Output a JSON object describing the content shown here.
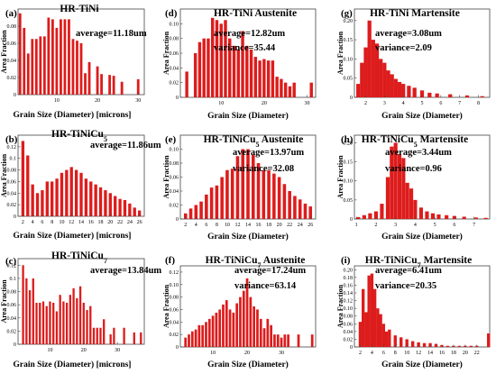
{
  "chart_data": [
    {
      "type": "bar",
      "panel_label": "(a)",
      "title": "HR-TiNi",
      "stats": [
        "average=11.18um"
      ],
      "xlabel": "Grain Size (Diameter) [microns]",
      "ylabel": "Area Fraction",
      "bar_color": "#dd1c1c",
      "ylim": [
        0,
        0.1
      ],
      "yticks": [
        0,
        0.02,
        0.04,
        0.06,
        0.08
      ],
      "ytick_labels": [
        "0",
        "0.02",
        "0.04",
        "0.06",
        "0.08"
      ],
      "xlim": [
        0.5,
        31.5
      ],
      "xticks": [
        10,
        20,
        30
      ],
      "xtick_labels": [
        "10",
        "20",
        "30"
      ],
      "x": [
        1,
        2,
        3,
        4,
        5,
        6,
        7,
        8,
        9,
        10,
        11,
        12,
        13,
        14,
        15,
        16,
        17,
        18,
        19,
        20,
        21,
        22,
        23,
        24,
        25,
        26,
        27,
        28,
        29,
        30
      ],
      "values": [
        0.095,
        0.078,
        0.048,
        0.065,
        0.065,
        0.068,
        0.068,
        0.09,
        0.088,
        0.078,
        0.088,
        0.088,
        0.088,
        0.065,
        0.063,
        0.06,
        0.025,
        0.038,
        0,
        0.033,
        0.024,
        0,
        0.023,
        0.022,
        0,
        0.015,
        0,
        0,
        0,
        0.018
      ]
    },
    {
      "type": "bar",
      "panel_label": "(b)",
      "title": "HR-TiNiCu5",
      "stats": [
        "average=11.86um"
      ],
      "xlabel": "Grain Size (Diameter) [microns]",
      "ylabel": "Area Fraction",
      "bar_color": "#dd1c1c",
      "ylim": [
        0,
        0.14
      ],
      "yticks": [
        0,
        0.02,
        0.04,
        0.06,
        0.08,
        0.1,
        0.12
      ],
      "ytick_labels": [
        "0",
        "0.02",
        "0.04",
        "0.06",
        "0.08",
        "0.1",
        "0.12"
      ],
      "xlim": [
        1,
        27
      ],
      "xticks": [
        2,
        4,
        6,
        8,
        10,
        12,
        14,
        16,
        18,
        20,
        22,
        24,
        26
      ],
      "xtick_labels": [
        "2",
        "4",
        "6",
        "8",
        "10",
        "12",
        "14",
        "16",
        "18",
        "20",
        "22",
        "24",
        "26"
      ],
      "x": [
        2,
        3,
        4,
        5,
        6,
        7,
        8,
        9,
        10,
        11,
        12,
        13,
        14,
        15,
        16,
        17,
        18,
        19,
        20,
        21,
        22,
        23,
        24,
        25,
        26
      ],
      "values": [
        0.13,
        0.105,
        0.055,
        0.04,
        0.045,
        0.06,
        0.06,
        0.065,
        0.075,
        0.08,
        0.085,
        0.08,
        0.075,
        0.065,
        0.06,
        0.055,
        0.05,
        0.045,
        0.04,
        0.035,
        0.03,
        0.028,
        0.022,
        0.015,
        0.01
      ]
    },
    {
      "type": "bar",
      "panel_label": "(c)",
      "title": "HR-TiNiCu7",
      "stats": [
        "average=13.84um"
      ],
      "xlabel": "Grain Size (Diameter) [microns]",
      "ylabel": "Area Fraction",
      "bar_color": "#dd1c1c",
      "ylim": [
        0,
        0.13
      ],
      "yticks": [
        0,
        0.02,
        0.04,
        0.06,
        0.08,
        0.1,
        0.12
      ],
      "ytick_labels": [
        "0",
        "0.02",
        "0.04",
        "0.06",
        "0.08",
        "0.1",
        "0.12"
      ],
      "xlim": [
        0.5,
        38
      ],
      "xticks": [
        10,
        20,
        30
      ],
      "xtick_labels": [
        "10",
        "20",
        "30"
      ],
      "x": [
        2,
        3,
        4,
        5,
        6,
        7,
        8,
        9,
        10,
        11,
        12,
        13,
        14,
        15,
        16,
        17,
        18,
        19,
        20,
        21,
        22,
        23,
        24,
        25,
        26,
        27,
        28,
        29,
        30,
        31,
        32,
        33,
        34,
        35,
        36,
        37
      ],
      "values": [
        0.12,
        0.1,
        0.082,
        0.1,
        0.063,
        0.063,
        0.065,
        0.058,
        0.065,
        0.063,
        0.05,
        0.075,
        0.065,
        0.063,
        0.075,
        0.085,
        0.07,
        0.088,
        0.063,
        0.052,
        0.058,
        0.025,
        0.025,
        0.025,
        0.038,
        0,
        0.015,
        0.025,
        0,
        0,
        0.025,
        0,
        0,
        0.018,
        0,
        0.018
      ]
    },
    {
      "type": "bar",
      "panel_label": "(d)",
      "title": "HR-TiNi Austenite",
      "stats": [
        "average=12.82um",
        "variance=35.44"
      ],
      "xlabel": "Grain Size (Diameter)",
      "ylabel": "Area Fraction",
      "bar_color": "#dd1c1c",
      "ylim": [
        0,
        0.12
      ],
      "yticks": [
        0,
        0.02,
        0.04,
        0.06,
        0.08,
        0.1
      ],
      "ytick_labels": [
        "0",
        "0.02",
        "0.04",
        "0.06",
        "0.08",
        "0.10"
      ],
      "xlim": [
        0.5,
        32
      ],
      "xticks": [
        10,
        20,
        30
      ],
      "xtick_labels": [
        "10",
        "20",
        "30"
      ],
      "x": [
        2,
        4,
        5,
        6,
        7,
        8,
        9,
        10,
        11,
        12,
        13,
        14,
        15,
        16,
        17,
        18,
        19,
        20,
        21,
        22,
        23,
        24,
        25,
        26,
        27,
        31
      ],
      "values": [
        0.035,
        0.06,
        0.075,
        0.08,
        0.08,
        0.108,
        0.105,
        0.1,
        0.105,
        0.08,
        0.07,
        0.065,
        0.09,
        0.07,
        0.065,
        0.055,
        0.05,
        0.052,
        0.05,
        0.05,
        0.028,
        0.025,
        0.02,
        0.015,
        0.02,
        0.02
      ]
    },
    {
      "type": "bar",
      "panel_label": "(e)",
      "title": "HR-TiNiCu5 Austenite",
      "stats": [
        "average=13.97um",
        "variance=32.08"
      ],
      "xlabel": "Grain Size (Diameter)",
      "ylabel": "Area Fraction",
      "bar_color": "#dd1c1c",
      "ylim": [
        0,
        0.12
      ],
      "yticks": [
        0,
        0.02,
        0.04,
        0.06,
        0.08,
        0.1
      ],
      "ytick_labels": [
        "0",
        "0.02",
        "0.04",
        "0.06",
        "0.08",
        "0.10"
      ],
      "xlim": [
        1,
        27
      ],
      "xticks": [
        2,
        4,
        6,
        8,
        10,
        12,
        14,
        16,
        18,
        20,
        22,
        24,
        26
      ],
      "xtick_labels": [
        "2",
        "4",
        "6",
        "8",
        "10",
        "12",
        "14",
        "16",
        "18",
        "20",
        "22",
        "24",
        "26"
      ],
      "x": [
        2,
        3,
        4,
        5,
        6,
        7,
        8,
        9,
        10,
        11,
        12,
        13,
        14,
        15,
        16,
        17,
        18,
        19,
        20,
        21,
        22,
        23,
        24,
        25,
        26
      ],
      "values": [
        0.008,
        0.015,
        0.02,
        0.025,
        0.035,
        0.045,
        0.048,
        0.06,
        0.07,
        0.072,
        0.09,
        0.1,
        0.1,
        0.092,
        0.08,
        0.07,
        0.07,
        0.065,
        0.06,
        0.05,
        0.04,
        0.033,
        0.028,
        0.022,
        0.018
      ]
    },
    {
      "type": "bar",
      "panel_label": "(f)",
      "title": "HR-TiNiCu7 Austenite",
      "stats": [
        "average=17.24um",
        "variance=63.14"
      ],
      "xlabel": "Grain Size (Diameter)",
      "ylabel": "Area Fraction",
      "bar_color": "#dd1c1c",
      "ylim": [
        0,
        0.13
      ],
      "yticks": [
        0,
        0.02,
        0.04,
        0.06,
        0.08,
        0.1,
        0.12
      ],
      "ytick_labels": [
        "0",
        "0.02",
        "0.04",
        "0.06",
        "0.08",
        "0.10",
        "0.12"
      ],
      "xlim": [
        0.5,
        40
      ],
      "xticks": [
        10,
        20,
        30
      ],
      "xtick_labels": [
        "10",
        "20",
        "30"
      ],
      "x": [
        2,
        3,
        4,
        5,
        6,
        7,
        8,
        9,
        10,
        11,
        12,
        13,
        14,
        15,
        16,
        17,
        18,
        19,
        20,
        21,
        22,
        23,
        24,
        25,
        26,
        27,
        28,
        29,
        30,
        31,
        32,
        35,
        39
      ],
      "values": [
        0.015,
        0.02,
        0.025,
        0.028,
        0.035,
        0.035,
        0.04,
        0.045,
        0.05,
        0.055,
        0.06,
        0.068,
        0.075,
        0.06,
        0.055,
        0.07,
        0.08,
        0.09,
        0.11,
        0.08,
        0.065,
        0.06,
        0.045,
        0.03,
        0.045,
        0.035,
        0.02,
        0.02,
        0.015,
        0.02,
        0.02,
        0.02,
        0.02
      ]
    },
    {
      "type": "bar",
      "panel_label": "(g)",
      "title": "HR-TiNi Martensite",
      "stats": [
        "average=3.08um",
        "variance=2.09"
      ],
      "xlabel": "Grain Size (Diameter)",
      "ylabel": "Area Fraction",
      "bar_color": "#dd1c1c",
      "ylim": [
        0,
        0.23
      ],
      "yticks": [
        0,
        0.05,
        0.1,
        0.15,
        0.2
      ],
      "ytick_labels": [
        "0",
        "0.05",
        "0.10",
        "0.15",
        "0.20"
      ],
      "xlim": [
        1.4,
        8.6
      ],
      "xticks": [
        2,
        3,
        4,
        5,
        6,
        7,
        8
      ],
      "xtick_labels": [
        "2",
        "3",
        "4",
        "5",
        "6",
        "7",
        "8"
      ],
      "x": [
        1.6,
        1.8,
        2,
        2.2,
        2.4,
        2.6,
        2.8,
        3,
        3.2,
        3.4,
        3.6,
        3.8,
        4,
        4.3,
        4.6,
        5,
        5.4,
        5.8,
        6.5,
        7.4,
        8.2
      ],
      "values": [
        0.035,
        0.09,
        0.13,
        0.2,
        0.15,
        0.14,
        0.1,
        0.09,
        0.07,
        0.06,
        0.048,
        0.04,
        0.035,
        0.03,
        0.025,
        0.018,
        0.012,
        0.01,
        0.008,
        0.005,
        0.003
      ]
    },
    {
      "type": "bar",
      "panel_label": "(h)",
      "title": "HR-TiNiCu5 Martensite",
      "stats": [
        "average=3.44um",
        "variance=0.96"
      ],
      "xlabel": "Grain Size (Diameter)",
      "ylabel": "Area Fraction",
      "bar_color": "#dd1c1c",
      "ylim": [
        0,
        0.22
      ],
      "yticks": [
        0,
        0.05,
        0.1,
        0.15,
        0.2
      ],
      "ytick_labels": [
        "0",
        "0.05",
        "0.10",
        "0.15",
        "0.20"
      ],
      "xlim": [
        0.9,
        7.8
      ],
      "xticks": [
        1,
        2,
        3,
        4,
        5,
        6,
        7
      ],
      "xtick_labels": [
        "1",
        "2",
        "3",
        "4",
        "5",
        "6",
        "7"
      ],
      "x": [
        1.1,
        1.4,
        1.7,
        2,
        2.3,
        2.6,
        2.8,
        3,
        3.2,
        3.4,
        3.6,
        3.8,
        4,
        4.3,
        4.6,
        4.9,
        5.2,
        5.6,
        6,
        6.5,
        7.1,
        7.6
      ],
      "values": [
        0.005,
        0.01,
        0.015,
        0.02,
        0.04,
        0.11,
        0.19,
        0.2,
        0.17,
        0.16,
        0.095,
        0.08,
        0.05,
        0.03,
        0.02,
        0.015,
        0.012,
        0.01,
        0.008,
        0.006,
        0.004,
        0.003
      ]
    },
    {
      "type": "bar",
      "panel_label": "(i)",
      "title": "HR-TiNiCu7 Martensite",
      "stats": [
        "average=6.41um",
        "variance=20.35"
      ],
      "xlabel": "Grain Size (Diameter)",
      "ylabel": "Area Fraction",
      "bar_color": "#dd1c1c",
      "ylim": [
        0,
        0.21
      ],
      "yticks": [
        0,
        0.02,
        0.04,
        0.06,
        0.08,
        0.1,
        0.12,
        0.14,
        0.16,
        0.18,
        0.2
      ],
      "ytick_labels": [
        "0",
        "0.02",
        "0.04",
        "0.06",
        "0.08",
        "0.10",
        "0.12",
        "0.14",
        "0.16",
        "0.18",
        "0.20"
      ],
      "xlim": [
        1,
        24.2
      ],
      "xticks": [
        2,
        4,
        6,
        8,
        10,
        12,
        14,
        16,
        18,
        20,
        22
      ],
      "xtick_labels": [
        "2",
        "4",
        "6",
        "8",
        "10",
        "12",
        "14",
        "16",
        "18",
        "20",
        "22"
      ],
      "x": [
        2,
        2.5,
        3,
        3.5,
        4,
        4.5,
        5,
        5.5,
        6,
        6.5,
        7,
        8,
        9,
        10,
        11,
        12,
        13,
        14,
        15,
        16,
        17,
        18,
        19,
        20,
        21,
        22,
        24
      ],
      "values": [
        0.065,
        0.15,
        0.09,
        0.185,
        0.19,
        0.15,
        0.1,
        0.085,
        0.06,
        0.04,
        0.045,
        0.03,
        0.025,
        0.02,
        0.015,
        0.012,
        0.01,
        0.01,
        0.008,
        0.005,
        0.003,
        0.003,
        0.003,
        0.003,
        0.003,
        0.003,
        0.035
      ]
    }
  ]
}
